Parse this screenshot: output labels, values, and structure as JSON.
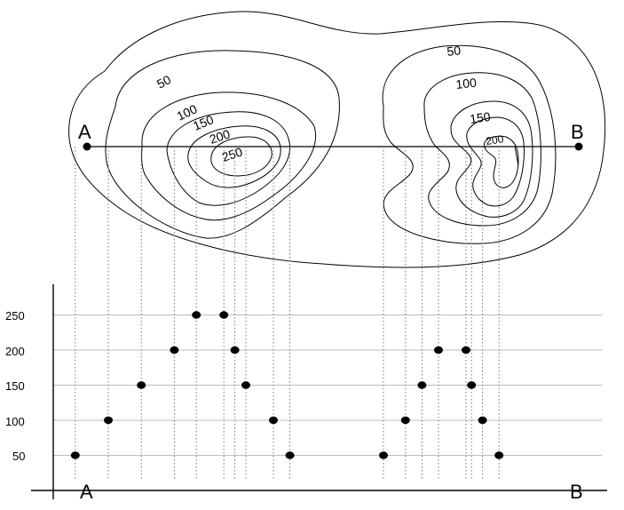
{
  "map": {
    "point_a": "A",
    "point_b": "B",
    "left_hill_labels": [
      "50",
      "100",
      "150",
      "200",
      "250"
    ],
    "right_hill_labels": [
      "50",
      "100",
      "150",
      "200"
    ]
  },
  "profile": {
    "y_ticks": [
      "250",
      "200",
      "150",
      "100",
      "50"
    ],
    "x_start": "A",
    "x_end": "B"
  },
  "chart_data": {
    "type": "scatter",
    "yticks": [
      50,
      100,
      150,
      200,
      250
    ],
    "xlabel": "",
    "ylabel": "",
    "series": [
      {
        "points": [
          {
            "x": 0.04,
            "y": 50
          },
          {
            "x": 0.1,
            "y": 100
          },
          {
            "x": 0.16,
            "y": 150
          },
          {
            "x": 0.22,
            "y": 200
          },
          {
            "x": 0.26,
            "y": 250
          },
          {
            "x": 0.31,
            "y": 250
          },
          {
            "x": 0.33,
            "y": 200
          },
          {
            "x": 0.35,
            "y": 150
          },
          {
            "x": 0.4,
            "y": 100
          },
          {
            "x": 0.43,
            "y": 50
          },
          {
            "x": 0.6,
            "y": 50
          },
          {
            "x": 0.64,
            "y": 100
          },
          {
            "x": 0.67,
            "y": 150
          },
          {
            "x": 0.7,
            "y": 200
          },
          {
            "x": 0.75,
            "y": 200
          },
          {
            "x": 0.76,
            "y": 150
          },
          {
            "x": 0.78,
            "y": 100
          },
          {
            "x": 0.81,
            "y": 50
          }
        ]
      }
    ],
    "xlim": [
      0,
      1
    ],
    "ylim": [
      0,
      285
    ],
    "grid": true
  }
}
